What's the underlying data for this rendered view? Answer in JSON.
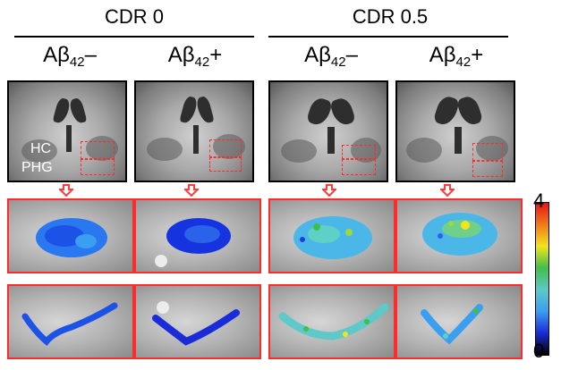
{
  "groups": {
    "cdr0": "CDR 0",
    "cdr05": "CDR 0.5"
  },
  "columns": [
    {
      "prefix": "Aβ",
      "sub": "42",
      "sign": "–"
    },
    {
      "prefix": "Aβ",
      "sub": "42",
      "sign": "+"
    },
    {
      "prefix": "Aβ",
      "sub": "42",
      "sign": "–"
    },
    {
      "prefix": "Aβ",
      "sub": "42",
      "sign": "+"
    }
  ],
  "roi_labels": {
    "hc": "HC",
    "phg": "PHG"
  },
  "colorbar": {
    "max": "4",
    "min": "0",
    "colors": [
      "#000000",
      "#1a2bd8",
      "#3a9ff0",
      "#5fc8c8",
      "#3fbf4a",
      "#f2e41c",
      "#f07a18",
      "#e8141a"
    ]
  },
  "colors": {
    "roi_box": "#ff2a2a",
    "arrow": "#ff3b3b"
  }
}
